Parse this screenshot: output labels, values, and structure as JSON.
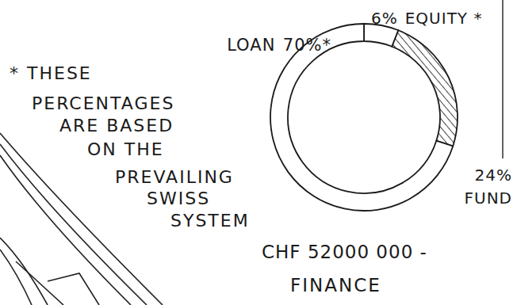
{
  "chart_data": {
    "type": "donut",
    "title": "CHF 52000 000 -",
    "subtitle": "FINANCE",
    "categories": [
      "EQUITY *",
      "FUND",
      "LOAN"
    ],
    "values": [
      6,
      24,
      70
    ],
    "value_labels": [
      "6%",
      "24%",
      "70%*"
    ],
    "colors": [
      "#ffffff",
      "#444444",
      "#ffffff"
    ],
    "data_labels": true,
    "annotation": [
      "* THESE",
      "PERCENTAGES",
      "ARE BASED",
      "ON THE",
      "PREVAILING",
      "SWISS",
      "SYSTEM"
    ]
  }
}
